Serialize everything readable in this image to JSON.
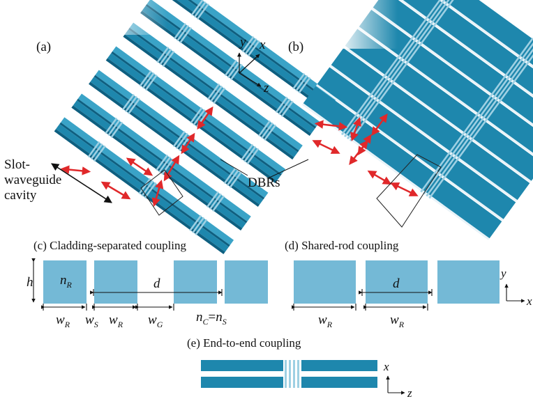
{
  "panels": {
    "a": "(a)",
    "b": "(b)",
    "c": "(c) Cladding-separated coupling",
    "d": "(d) Shared-rod coupling",
    "e": "(e) End-to-end coupling"
  },
  "labels": {
    "slot_line1": "Slot-",
    "slot_line2": "waveguide",
    "slot_line3": "cavity",
    "dbrs": "DBRs"
  },
  "axes3d": {
    "y": "y",
    "x": "x",
    "z": "z"
  },
  "axes_d": {
    "y": "y",
    "x": "x"
  },
  "axes_e": {
    "x": "x",
    "z": "z"
  },
  "symbols": {
    "h": "h",
    "n": "n",
    "R": "R",
    "d": "d",
    "w": "w",
    "S": "S",
    "G": "G",
    "C": "C",
    "eq": "="
  },
  "colors": {
    "rod": "#1e87ad",
    "rod_dark": "#0e5f80",
    "rod_top": "#3aa3c7",
    "dbr": "#9ed0e3",
    "cross_section": "#74b9d6",
    "arrow_red": "#e0282a",
    "box": "#222222"
  }
}
